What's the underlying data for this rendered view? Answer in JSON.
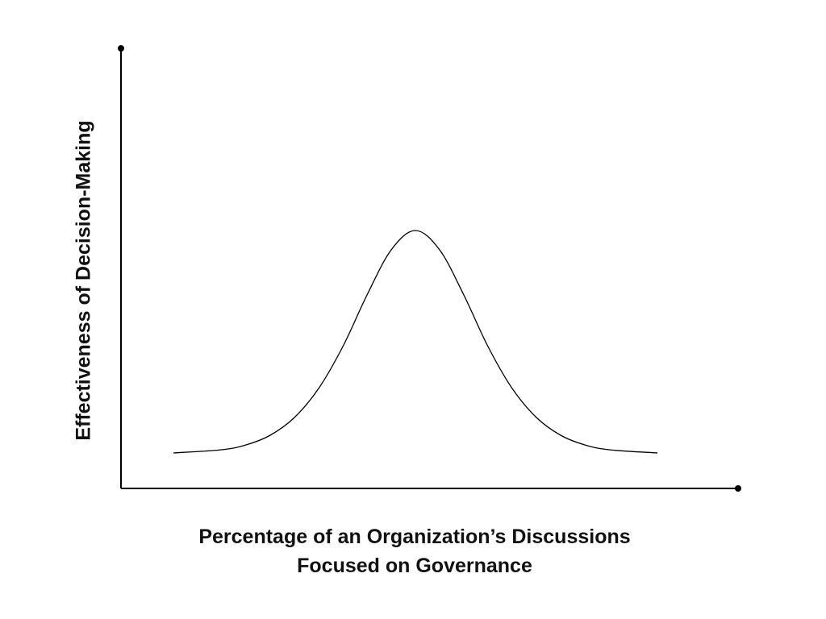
{
  "chart_data": {
    "type": "line",
    "title": "",
    "xlabel_lines": [
      "Percentage of an Organization’s Discussions",
      "Focused on Governance"
    ],
    "ylabel": "Effectiveness of Decision-Making",
    "xlim": [
      0,
      100
    ],
    "ylim": [
      0,
      100
    ],
    "grid": false,
    "legend": "none",
    "series": [
      {
        "name": "effectiveness-curve",
        "x": [
          0,
          10,
          15,
          20,
          25,
          30,
          35,
          40,
          45,
          50,
          55,
          60,
          65,
          70,
          75,
          80,
          85,
          90,
          100
        ],
        "y": [
          11,
          12,
          13.5,
          16.5,
          22,
          31,
          44,
          60,
          74,
          80,
          74,
          60,
          44,
          31,
          22,
          16.5,
          13.5,
          12,
          11
        ]
      }
    ],
    "colors": {
      "axis": "#000000",
      "curve": "#000000",
      "text": "#111111"
    }
  }
}
